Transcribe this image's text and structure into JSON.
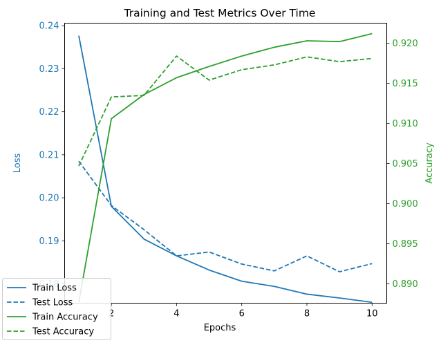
{
  "chart_data": {
    "type": "line",
    "title": "Training and Test Metrics Over Time",
    "xlabel": "Epochs",
    "ylabel_left": "Loss",
    "ylabel_right": "Accuracy",
    "x": [
      1,
      2,
      3,
      4,
      5,
      6,
      7,
      8,
      9,
      10
    ],
    "xlim": [
      0.565,
      10.45
    ],
    "ylim_left": [
      0.1755,
      0.2406
    ],
    "ylim_right": [
      0.8876,
      0.9225
    ],
    "xticks": [
      2,
      4,
      6,
      8,
      10
    ],
    "yticks_left": [
      0.18,
      0.19,
      0.2,
      0.21,
      0.22,
      0.23,
      0.24
    ],
    "yticks_right": [
      0.89,
      0.895,
      0.9,
      0.905,
      0.91,
      0.915,
      0.92
    ],
    "colors": {
      "loss_axis": "#1f77b4",
      "accuracy_axis": "#2ca02c"
    },
    "legend_position": "lower-left",
    "series": [
      {
        "name": "Train Loss",
        "axis": "left",
        "color": "#1f77b4",
        "style": "solid",
        "values": [
          0.2377,
          0.198,
          0.1904,
          0.1865,
          0.1832,
          0.1806,
          0.1794,
          0.1776,
          0.1767,
          0.1757
        ]
      },
      {
        "name": "Test Loss",
        "axis": "left",
        "color": "#1f77b4",
        "style": "dashed",
        "values": [
          0.2085,
          0.1982,
          0.1926,
          0.1865,
          0.1874,
          0.1846,
          0.183,
          0.1865,
          0.1828,
          0.1847
        ]
      },
      {
        "name": "Train Accuracy",
        "axis": "right",
        "color": "#2ca02c",
        "style": "solid",
        "values": [
          0.8877,
          0.9106,
          0.9136,
          0.9157,
          0.9171,
          0.9184,
          0.9195,
          0.9203,
          0.9202,
          0.9212
        ]
      },
      {
        "name": "Test Accuracy",
        "axis": "right",
        "color": "#2ca02c",
        "style": "dashed",
        "values": [
          0.9047,
          0.9133,
          0.9135,
          0.9184,
          0.9154,
          0.9167,
          0.9173,
          0.9183,
          0.9177,
          0.9181
        ]
      }
    ]
  }
}
